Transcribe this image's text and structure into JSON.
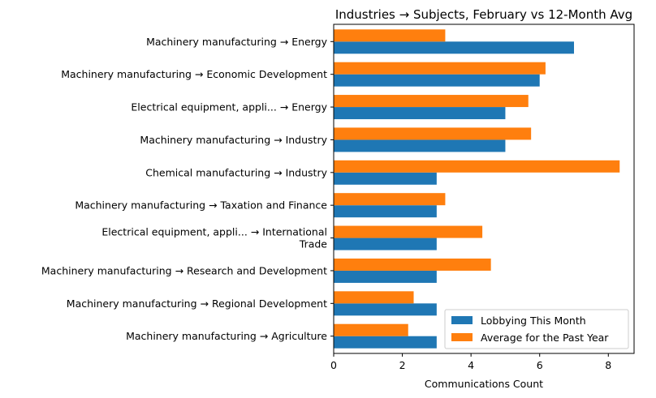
{
  "chart_data": {
    "type": "bar",
    "orientation": "horizontal",
    "title": "Industries → Subjects, February vs 12-Month Avg",
    "xlabel": "Communications Count",
    "ylabel": "",
    "xlim": [
      0,
      8.75
    ],
    "xticks": [
      "0",
      "2",
      "4",
      "6",
      "8"
    ],
    "grid": false,
    "legend_position": "bottom-right",
    "categories": [
      [
        "Machinery manufacturing → Energy"
      ],
      [
        "Machinery manufacturing → Economic Development"
      ],
      [
        "Electrical equipment, appli... → Energy"
      ],
      [
        "Machinery manufacturing → Industry"
      ],
      [
        "Chemical manufacturing → Industry"
      ],
      [
        "Machinery manufacturing → Taxation and Finance"
      ],
      [
        "Electrical equipment, appli... → International",
        "Trade"
      ],
      [
        "Machinery manufacturing → Research and Development"
      ],
      [
        "Machinery manufacturing → Regional Development"
      ],
      [
        "Machinery manufacturing → Agriculture"
      ]
    ],
    "series": [
      {
        "name": "Lobbying This Month",
        "color": "#1f77b4",
        "values": [
          7,
          6,
          5,
          5,
          3,
          3,
          3,
          3,
          3,
          3
        ]
      },
      {
        "name": "Average for the Past Year",
        "color": "#ff7f0e",
        "values": [
          3.25,
          6.17,
          5.67,
          5.75,
          8.33,
          3.25,
          4.33,
          4.58,
          2.33,
          2.17
        ]
      }
    ]
  }
}
